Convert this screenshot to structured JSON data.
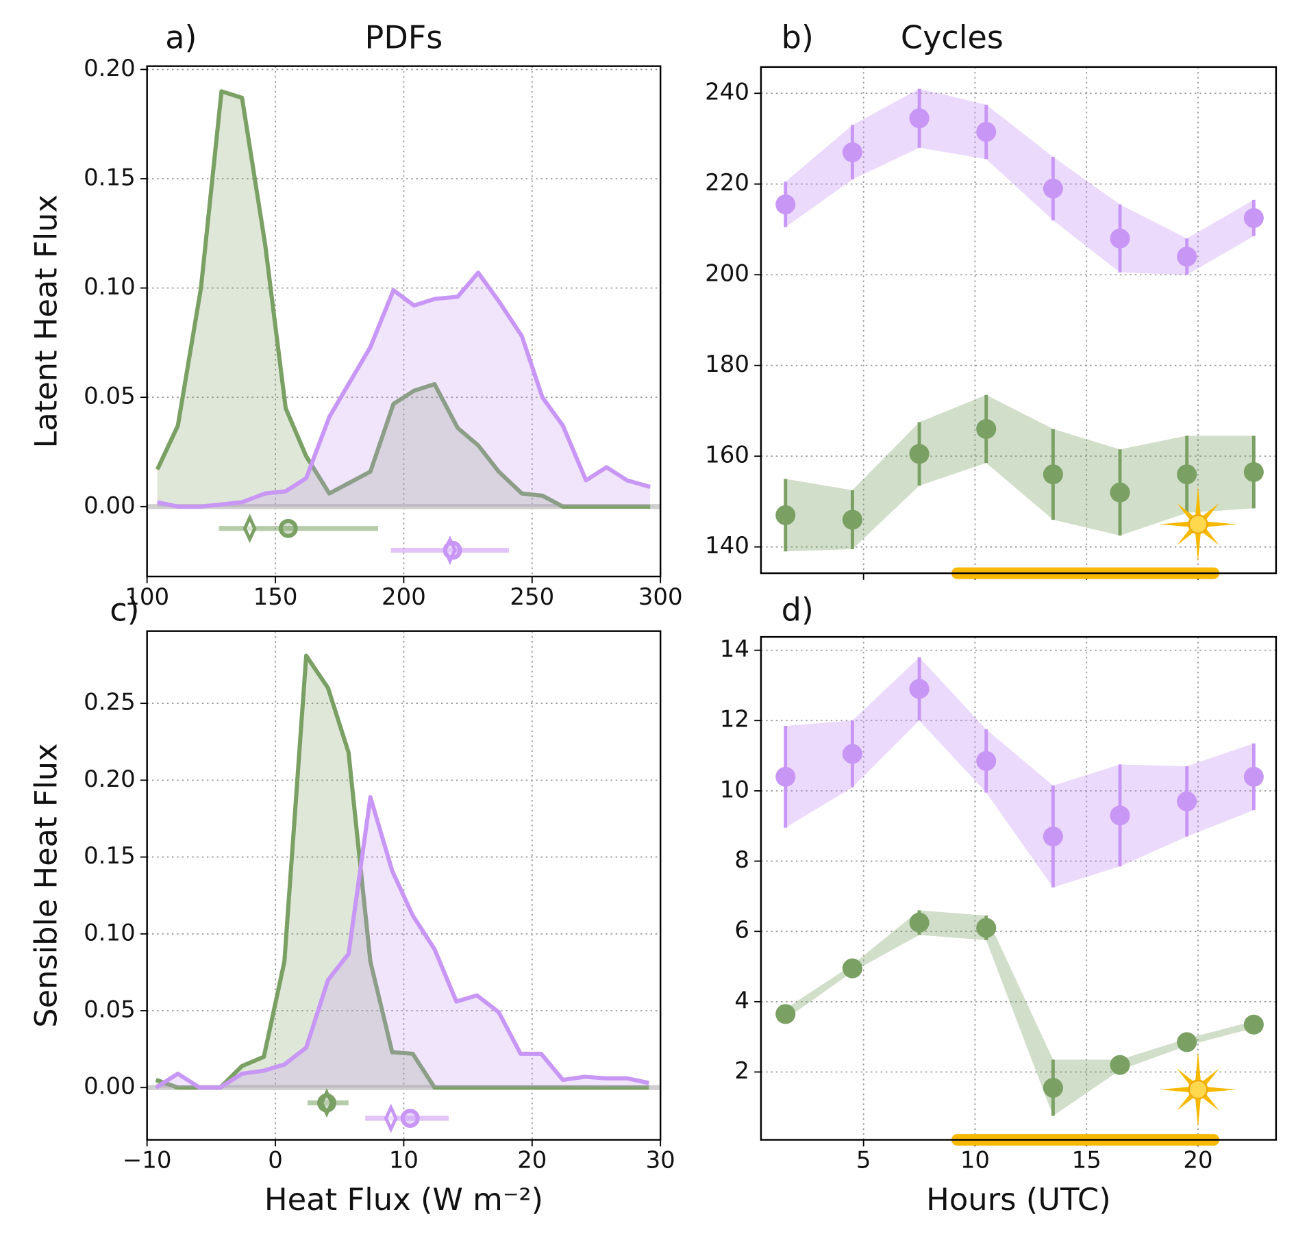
{
  "chart_data": [
    {
      "type": "area",
      "panel_label": "a)",
      "title": "PDFs",
      "ylabel": "Latent Heat Flux",
      "xlim": [
        100,
        300
      ],
      "xticks": [
        100,
        150,
        200,
        250,
        300
      ],
      "ylim": [
        -0.032,
        0.2015
      ],
      "yticks": [
        {
          "value": 0,
          "label": "0.00"
        },
        {
          "value": 0.05,
          "label": "0.05"
        },
        {
          "value": 0.1,
          "label": "0.10"
        },
        {
          "value": 0.15,
          "label": "0.15"
        },
        {
          "value": 0.2,
          "label": "0.20"
        }
      ],
      "grid": true,
      "x": [
        104,
        112,
        121,
        129,
        137,
        146,
        154,
        162,
        171,
        179,
        187,
        196,
        204,
        212,
        221,
        229,
        237,
        246,
        254,
        262,
        271,
        279,
        287,
        296
      ],
      "series": [
        {
          "color": "#7aa064",
          "values": [
            0.017,
            0.037,
            0.1,
            0.19,
            0.187,
            0.12,
            0.045,
            0.023,
            0.006,
            0.011,
            0.016,
            0.047,
            0.053,
            0.056,
            0.036,
            0.028,
            0.016,
            0.006,
            0.005,
            0,
            0,
            0,
            0,
            0
          ]
        },
        {
          "color": "#c896f5",
          "values": [
            0.002,
            0,
            0,
            0.001,
            0.002,
            0.006,
            0.007,
            0.013,
            0.041,
            0.057,
            0.073,
            0.099,
            0.092,
            0.095,
            0.096,
            0.107,
            0.094,
            0.078,
            0.05,
            0.037,
            0.012,
            0.018,
            0.012,
            0.009
          ]
        }
      ],
      "summaries": [
        {
          "color": "#7aa064",
          "y": -0.01,
          "range": [
            128,
            190
          ],
          "median": 140,
          "mean": 155
        },
        {
          "color": "#c896f5",
          "y": -0.02,
          "range": [
            195,
            241
          ],
          "median": 218,
          "mean": 219
        }
      ]
    },
    {
      "type": "errorbar",
      "panel_label": "b)",
      "title": "Cycles",
      "xlim": [
        0.4,
        23.5
      ],
      "xticks": [
        5,
        10,
        15,
        20
      ],
      "show_xtick_labels": false,
      "ylim": [
        134.2,
        245.8
      ],
      "yticks": [
        140,
        160,
        180,
        200,
        220,
        240
      ],
      "grid": true,
      "x": [
        1.5,
        4.5,
        7.5,
        10.5,
        13.5,
        16.5,
        19.5,
        22.5
      ],
      "series": [
        {
          "color": "#c896f5",
          "values": [
            215.5,
            227,
            234.5,
            231.5,
            219,
            208,
            204,
            212.5
          ],
          "errors": [
            5,
            6,
            6.5,
            6,
            7,
            7.5,
            4,
            4
          ]
        },
        {
          "color": "#7aa064",
          "values": [
            147,
            146,
            160.5,
            166,
            156,
            152,
            156,
            156.5
          ],
          "errors": [
            8,
            6.5,
            7,
            7.5,
            10,
            9.5,
            8.5,
            8
          ]
        }
      ],
      "daylight": [
        9.2,
        20.7
      ],
      "sun": [
        20,
        145
      ]
    },
    {
      "type": "area",
      "panel_label": "c)",
      "ylabel": "Sensible Heat Flux",
      "xlabel": "Heat Flux (W m⁻²)",
      "xlim": [
        -10,
        30
      ],
      "xticks": [
        {
          "value": -10,
          "label": "−10"
        },
        0,
        10,
        20,
        30
      ],
      "ylim": [
        -0.034,
        0.297
      ],
      "yticks": [
        {
          "value": 0,
          "label": "0.00"
        },
        {
          "value": 0.05,
          "label": "0.05"
        },
        {
          "value": 0.1,
          "label": "0.10"
        },
        {
          "value": 0.15,
          "label": "0.15"
        },
        {
          "value": 0.2,
          "label": "0.20"
        },
        {
          "value": 0.25,
          "label": "0.25"
        }
      ],
      "grid": true,
      "x": [
        -9.3,
        -7.6,
        -5.9,
        -4.3,
        -2.6,
        -0.9,
        0.7,
        2.4,
        4.1,
        5.7,
        7.4,
        9.1,
        10.7,
        12.4,
        14.1,
        15.7,
        17.4,
        19.1,
        20.7,
        22.4,
        24.1,
        25.7,
        27.4,
        29.1
      ],
      "series": [
        {
          "color": "#7aa064",
          "values": [
            0.005,
            0,
            0,
            0,
            0.014,
            0.02,
            0.082,
            0.281,
            0.26,
            0.218,
            0.082,
            0.023,
            0.022,
            0,
            0,
            0,
            0,
            0,
            0,
            0,
            0,
            0,
            0,
            0
          ]
        },
        {
          "color": "#c896f5",
          "values": [
            0,
            0.009,
            0,
            0,
            0.009,
            0.011,
            0.015,
            0.026,
            0.07,
            0.087,
            0.189,
            0.141,
            0.112,
            0.09,
            0.056,
            0.06,
            0.049,
            0.022,
            0.022,
            0.005,
            0.007,
            0.006,
            0.006,
            0.003
          ]
        }
      ],
      "summaries": [
        {
          "color": "#7aa064",
          "y": -0.01,
          "range": [
            2.5,
            5.7
          ],
          "median": 4,
          "mean": 4
        },
        {
          "color": "#c896f5",
          "y": -0.02,
          "range": [
            7,
            13.5
          ],
          "median": 9,
          "mean": 10.5
        }
      ]
    },
    {
      "type": "errorbar",
      "panel_label": "d)",
      "xlabel": "Hours (UTC)",
      "xlim": [
        0.4,
        23.5
      ],
      "xticks": [
        5,
        10,
        15,
        20
      ],
      "ylim": [
        0.07,
        14.38
      ],
      "yticks": [
        2,
        4,
        6,
        8,
        10,
        12,
        14
      ],
      "grid": true,
      "x": [
        1.5,
        4.5,
        7.5,
        10.5,
        13.5,
        16.5,
        19.5,
        22.5
      ],
      "series": [
        {
          "color": "#c896f5",
          "values": [
            10.4,
            11.05,
            12.9,
            10.85,
            8.7,
            9.3,
            9.7,
            10.4
          ],
          "errors": [
            1.45,
            0.95,
            0.9,
            0.9,
            1.45,
            1.45,
            1.0,
            0.95
          ]
        },
        {
          "color": "#7aa064",
          "values": [
            3.65,
            4.95,
            6.25,
            6.1,
            1.55,
            2.2,
            2.85,
            3.35
          ],
          "errors": [
            0.15,
            0.1,
            0.35,
            0.35,
            0.8,
            0.15,
            0.1,
            0.1
          ]
        }
      ],
      "daylight": [
        9.2,
        20.7
      ],
      "sun": [
        20,
        1.5
      ]
    }
  ]
}
